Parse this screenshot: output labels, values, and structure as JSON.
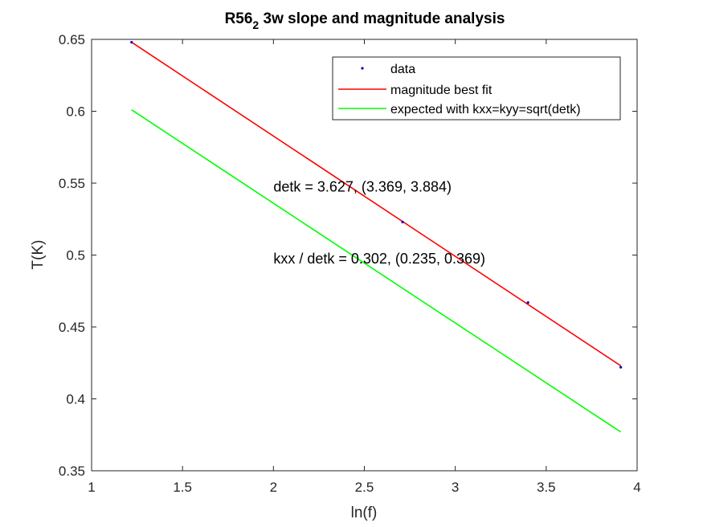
{
  "chart_data": {
    "type": "line",
    "title": "R56",
    "title_subscript": "2",
    "title_rest": " 3w slope and magnitude analysis",
    "xlabel": "ln(f)",
    "ylabel": "T(K)",
    "xlim": [
      1,
      4
    ],
    "ylim": [
      0.35,
      0.65
    ],
    "xticks": [
      1,
      1.5,
      2,
      2.5,
      3,
      3.5,
      4
    ],
    "xtick_labels": [
      "1",
      "1.5",
      "2",
      "2.5",
      "3",
      "3.5",
      "4"
    ],
    "yticks": [
      0.35,
      0.4,
      0.45,
      0.5,
      0.55,
      0.6,
      0.65
    ],
    "ytick_labels": [
      "0.35",
      "0.4",
      "0.45",
      "0.5",
      "0.55",
      "0.6",
      "0.65"
    ],
    "grid": false,
    "legend_position": "top-right",
    "series": [
      {
        "name": "data",
        "style": "points",
        "color": "#0000CD",
        "x": [
          1.22,
          2.71,
          3.4,
          3.91
        ],
        "y": [
          0.648,
          0.523,
          0.467,
          0.422
        ]
      },
      {
        "name": "magnitude best fit",
        "style": "line",
        "color": "#FF0000",
        "x": [
          1.22,
          3.91
        ],
        "y": [
          0.648,
          0.423
        ]
      },
      {
        "name": "expected with kxx=kyy=sqrt(detk)",
        "style": "line",
        "color": "#00FF00",
        "x": [
          1.22,
          3.91
        ],
        "y": [
          0.601,
          0.377
        ]
      }
    ],
    "annotations": [
      {
        "text": "detk = 3.627, (3.369, 3.884)",
        "x": 2.0,
        "y": 0.5475
      },
      {
        "text": "kxx / detk = 0.302, (0.235, 0.369)",
        "x": 2.0,
        "y": 0.4975
      }
    ]
  }
}
